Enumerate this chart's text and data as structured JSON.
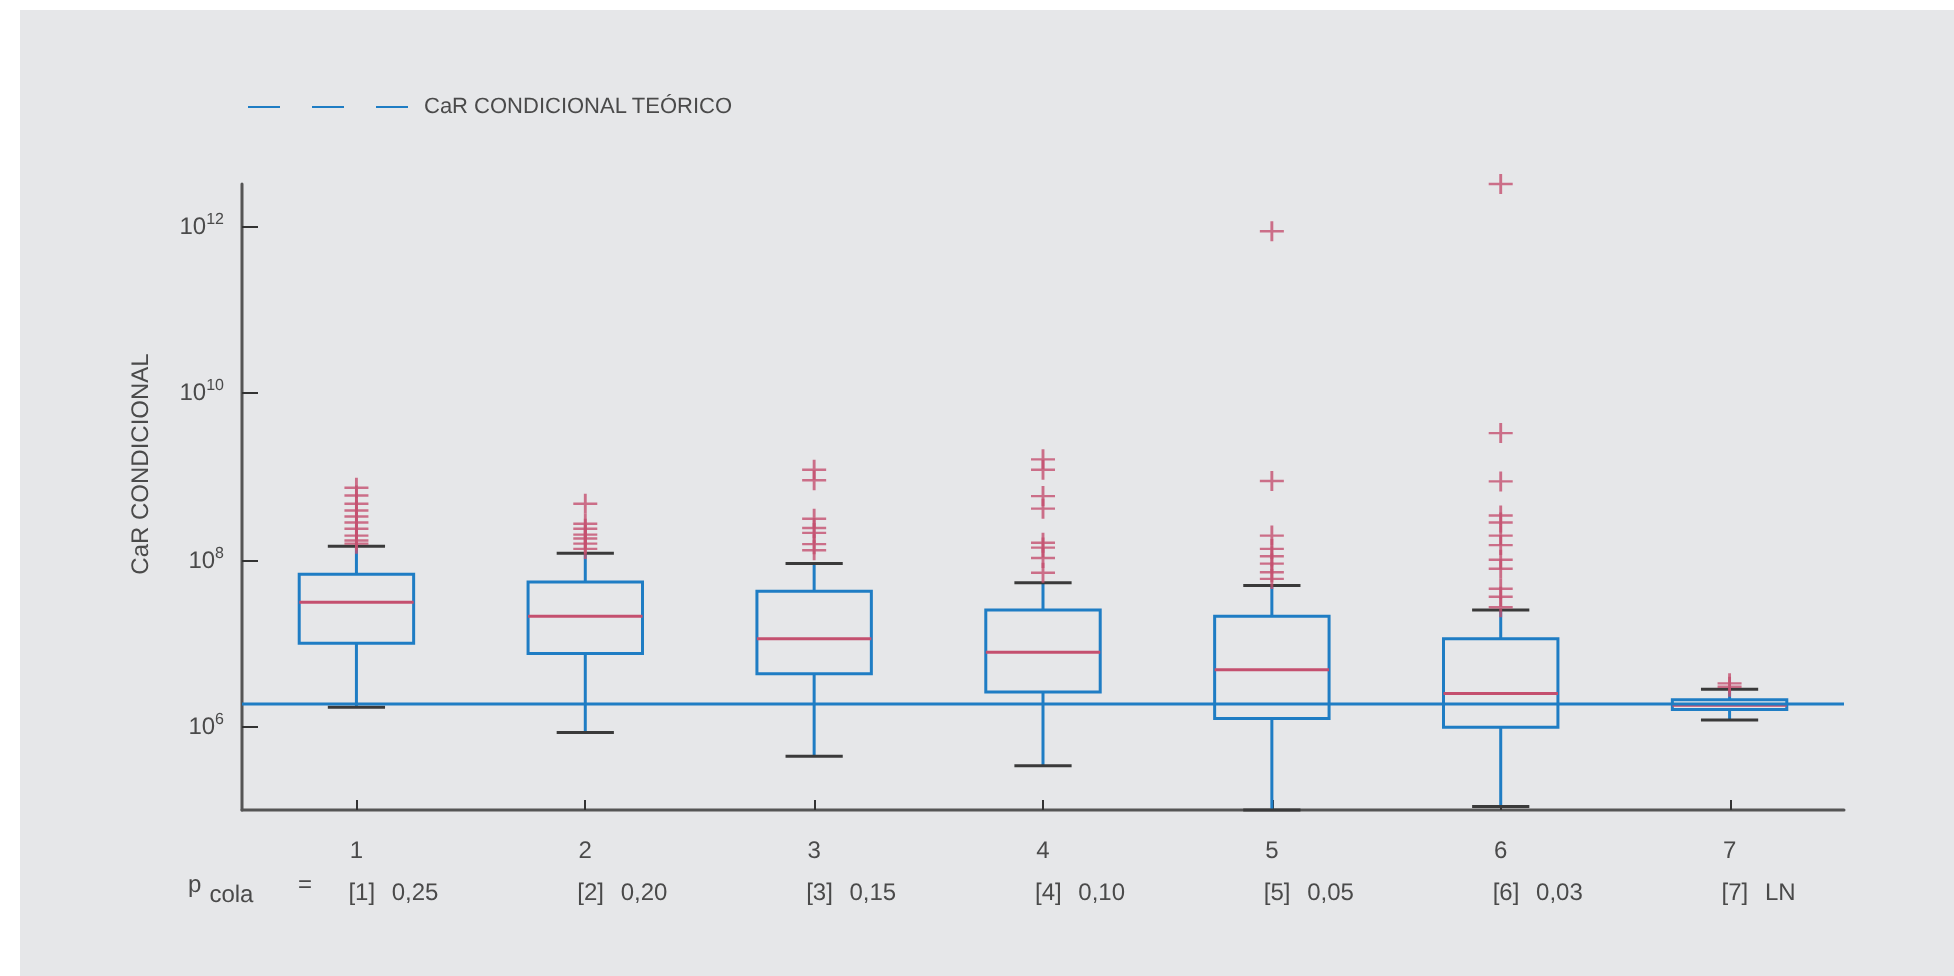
{
  "chart_data": {
    "type": "box",
    "categories": [
      "1",
      "2",
      "3",
      "4",
      "5",
      "6",
      "7"
    ],
    "ylabel": "CaR CONDICIONAL",
    "log": true,
    "ylim": [
      100000.0,
      3200000000000.0
    ],
    "yticks": [
      {
        "value": 1000000.0,
        "label": "10$^{6}$"
      },
      {
        "value": 100000000.0,
        "label": "10$^{8}$"
      },
      {
        "value": 10000000000.0,
        "label": "10$^{10}$"
      },
      {
        "value": 1000000000000.0,
        "label": "10$^{12}$"
      }
    ],
    "grid": false,
    "legend": "top left",
    "marker": "cross",
    "series": [
      {
        "color": "#1f7dc4",
        "boxes": [
          {
            "low": 1700000.0,
            "q1": 10000000.0,
            "median": 31000000.0,
            "q3": 67000000.0,
            "high": 145000000.0,
            "outliers": [
              156000000.0,
              170000000.0,
              195000000.0,
              235000000.0,
              280000000.0,
              330000000.0,
              390000000.0,
              470000000.0,
              590000000.0,
              730000000.0
            ]
          },
          {
            "low": 850000.0,
            "q1": 7500000.0,
            "median": 21000000.0,
            "q3": 54000000.0,
            "high": 120000000.0,
            "outliers": [
              135000000.0,
              156000000.0,
              180000000.0,
              200000000.0,
              235000000.0,
              270000000.0,
              470000000.0
            ]
          },
          {
            "low": 440000.0,
            "q1": 4300000.0,
            "median": 11300000.0,
            "q3": 42000000.0,
            "high": 90000000.0,
            "outliers": [
              130000000.0,
              154000000.0,
              210000000.0,
              240000000.0,
              310000000.0,
              900000000.0,
              1200000000.0
            ]
          },
          {
            "low": 340000.0,
            "q1": 2600000.0,
            "median": 7800000.0,
            "q3": 25000000.0,
            "high": 53000000.0,
            "outliers": [
              70000000.0,
              105000000.0,
              140000000.0,
              160000000.0,
              410000000.0,
              580000000.0,
              1200000000.0,
              1600000000.0
            ]
          },
          {
            "low": 100000.0,
            "q1": 1250000.0,
            "median": 4800000.0,
            "q3": 21000000.0,
            "high": 49000000.0,
            "outliers": [
              59000000.0,
              71000000.0,
              90000000.0,
              110000000.0,
              135000000.0,
              195000000.0,
              880000000.0,
              870000000000.0
            ]
          },
          {
            "low": 110000.0,
            "q1": 980000.0,
            "median": 2500000.0,
            "q3": 11300000.0,
            "high": 25000000.0,
            "outliers": [
              27000000.0,
              36000000.0,
              45000000.0,
              78000000.0,
              100000000.0,
              150000000.0,
              195000000.0,
              280000000.0,
              340000000.0,
              870000000.0,
              3300000000.0,
              3200000000000.0
            ]
          },
          {
            "low": 1200000.0,
            "q1": 1600000.0,
            "median": 1800000.0,
            "q3": 2100000.0,
            "high": 2800000.0,
            "outliers": [
              3000000.0,
              3300000.0
            ]
          }
        ]
      }
    ],
    "ref_lines": [
      {
        "axis": "y",
        "value": 1900000.0,
        "label": "CaR CONDICIONAL TEÓRICO",
        "color": "#1f7dc4"
      }
    ],
    "annotations": [
      "p$_{cola}$ =",
      "[1] 0,25",
      "[2] 0,20",
      "[3] 0,15",
      "[4] 0,10",
      "[5] 0,05",
      "[6] 0,03",
      "[7] LN"
    ]
  }
}
